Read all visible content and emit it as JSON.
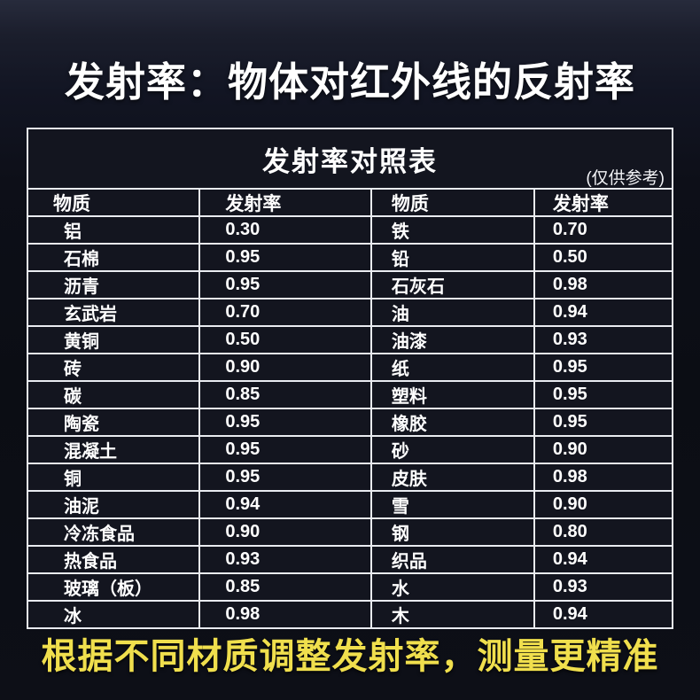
{
  "header": {
    "title": "发射率：物体对红外线的反射率"
  },
  "chart_data": {
    "type": "table",
    "title": "发射率对照表",
    "note": "(仅供参考)",
    "columns": [
      "物质",
      "发射率",
      "物质",
      "发射率"
    ],
    "rows": [
      [
        "铝",
        "0.30",
        "铁",
        "0.70"
      ],
      [
        "石棉",
        "0.95",
        "铅",
        "0.50"
      ],
      [
        "沥青",
        "0.95",
        "石灰石",
        "0.98"
      ],
      [
        "玄武岩",
        "0.70",
        "油",
        "0.94"
      ],
      [
        "黄铜",
        "0.50",
        "油漆",
        "0.93"
      ],
      [
        "砖",
        "0.90",
        "纸",
        "0.95"
      ],
      [
        "碳",
        "0.85",
        "塑料",
        "0.95"
      ],
      [
        "陶瓷",
        "0.95",
        "橡胶",
        "0.95"
      ],
      [
        "混凝土",
        "0.95",
        "砂",
        "0.90"
      ],
      [
        "铜",
        "0.95",
        "皮肤",
        "0.98"
      ],
      [
        "油泥",
        "0.94",
        "雪",
        "0.90"
      ],
      [
        "冷冻食品",
        "0.90",
        "钢",
        "0.80"
      ],
      [
        "热食品",
        "0.93",
        "织品",
        "0.94"
      ],
      [
        "玻璃（板）",
        "0.85",
        "水",
        "0.93"
      ],
      [
        "冰",
        "0.98",
        "木",
        "0.94"
      ]
    ]
  },
  "footer": {
    "slogan": "根据不同材质调整发射率，测量更精准"
  },
  "colors": {
    "accent_yellow": "#f0df4d",
    "table_border": "#e9ebf0",
    "background_dark": "#0c0e16",
    "text_white": "#ffffff"
  }
}
